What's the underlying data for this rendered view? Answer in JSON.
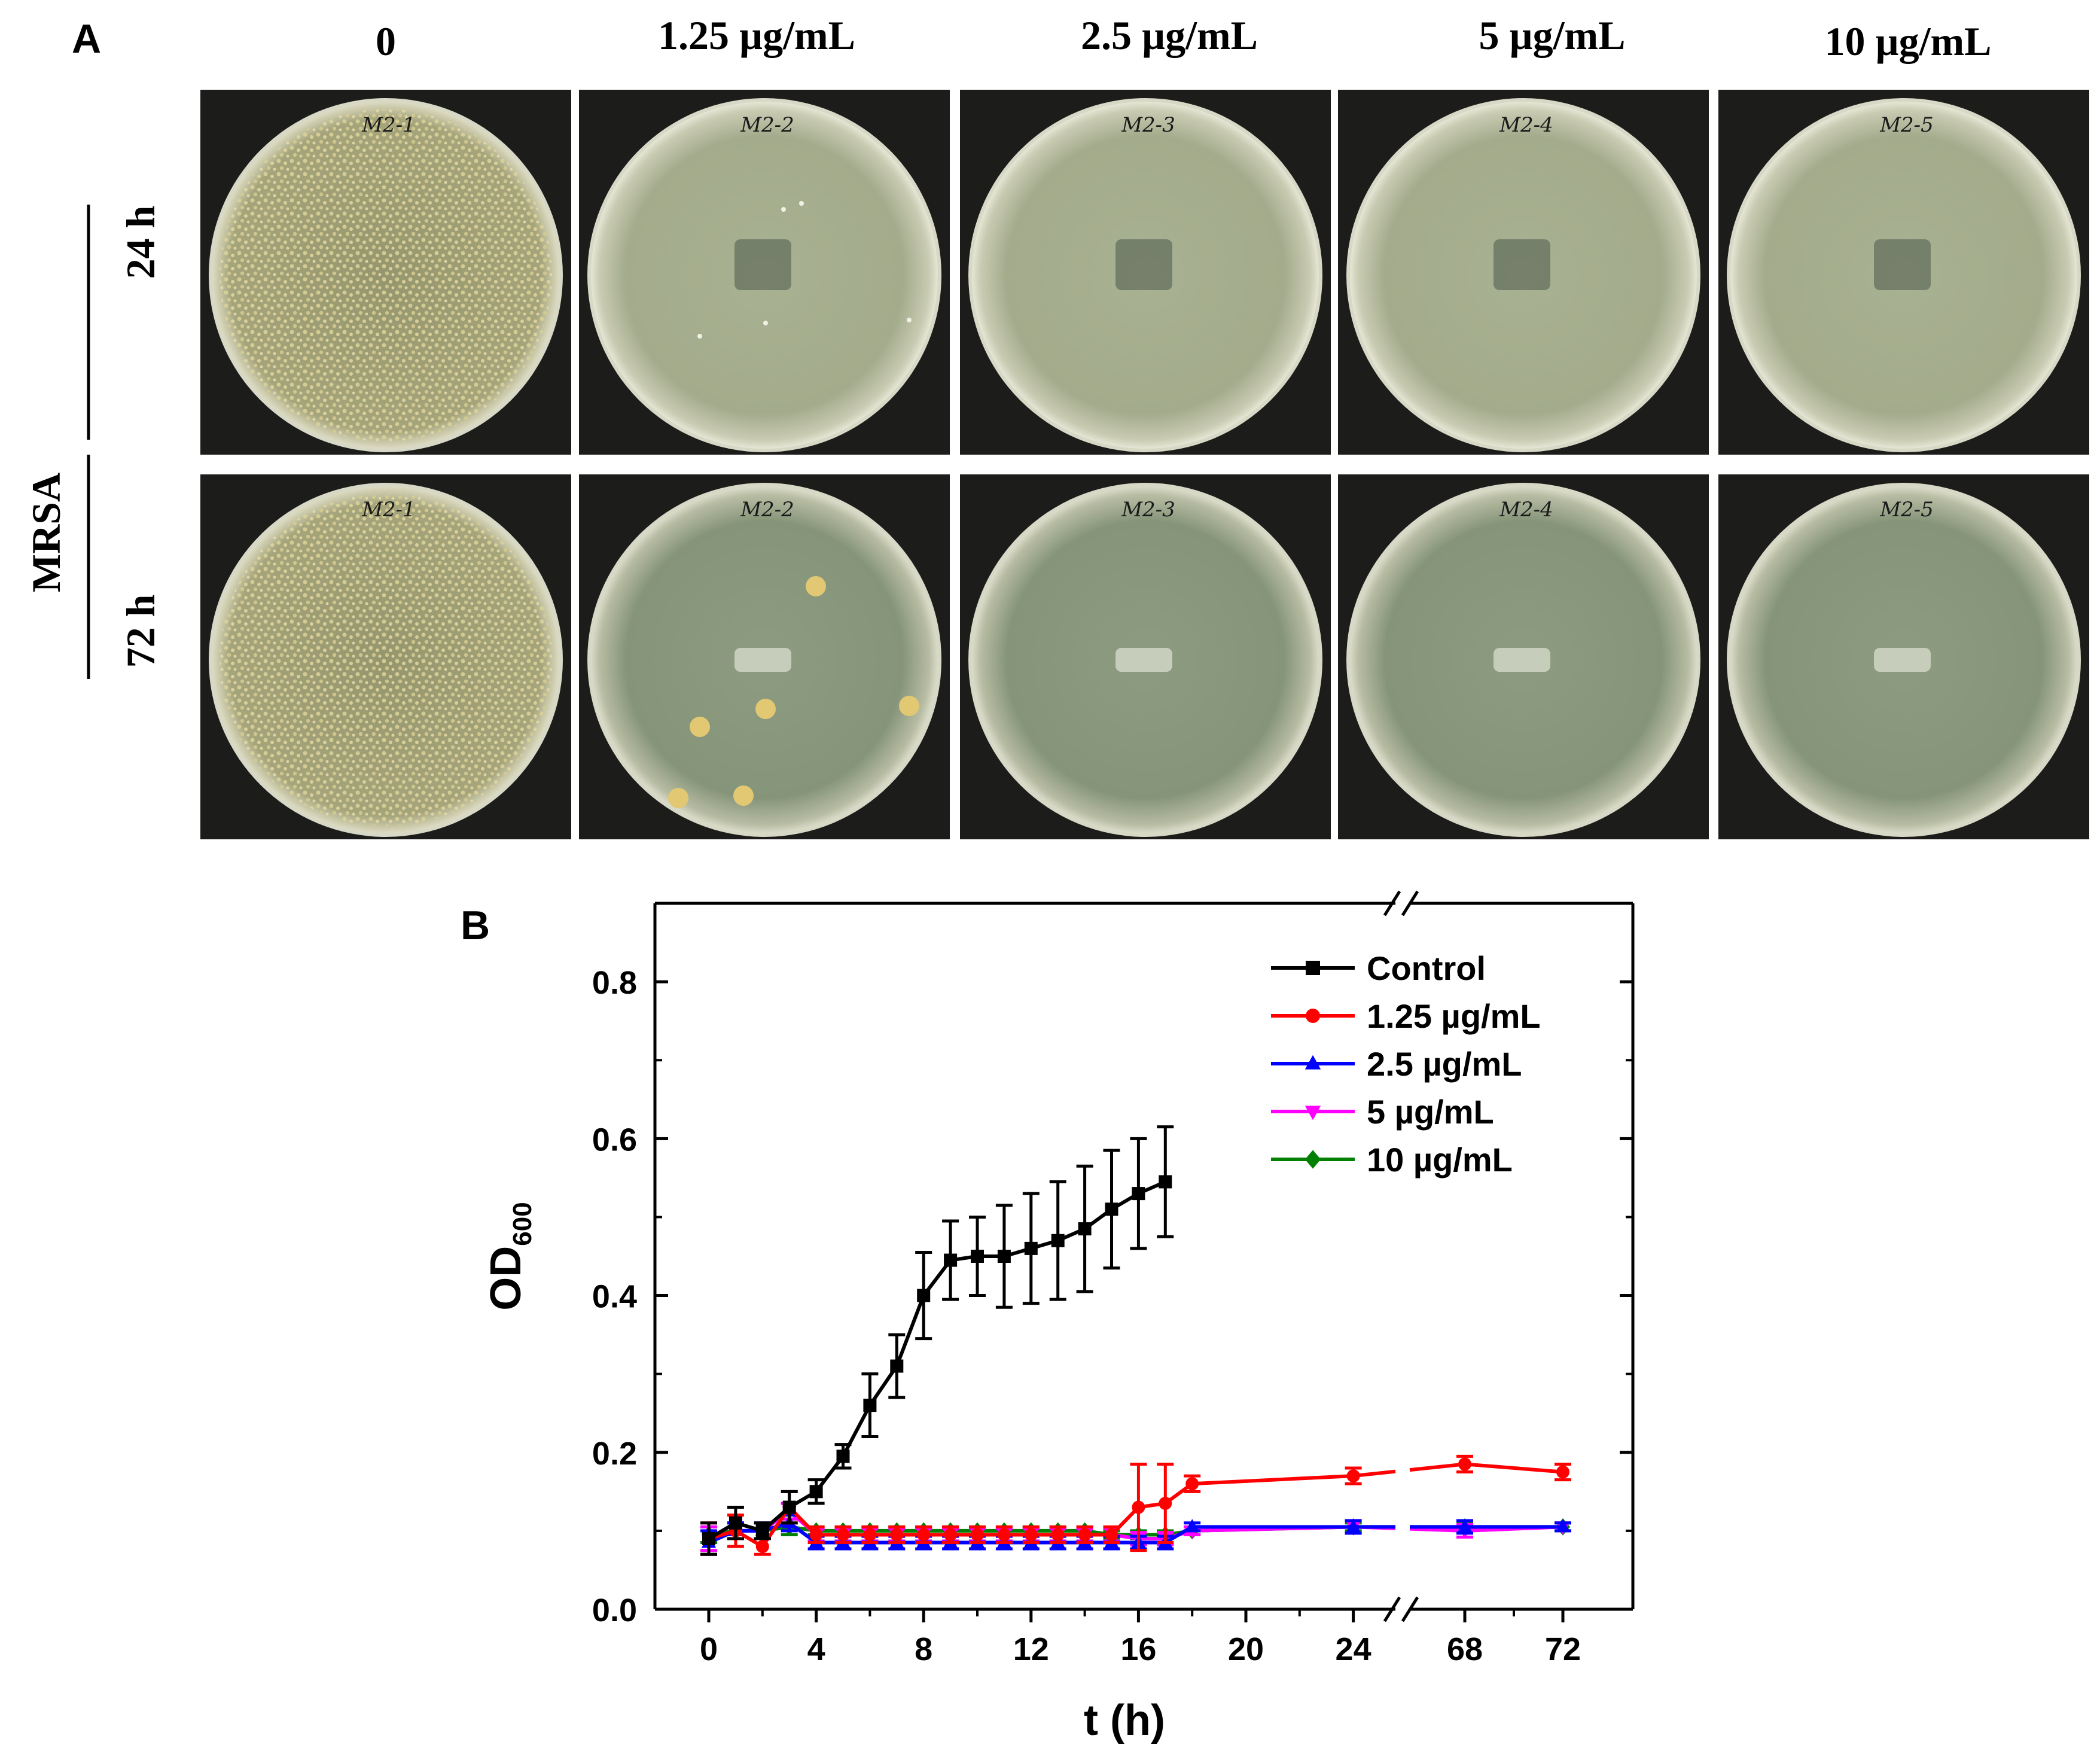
{
  "panel_a": {
    "label": "A",
    "column_headers": [
      "0",
      "1.25 µg/mL",
      "2.5 µg/mL",
      "5 µg/mL",
      "10 µg/mL"
    ],
    "row_headers": [
      "24 h",
      "72 h"
    ],
    "group_label": "MRSA",
    "plate_labels": [
      [
        "M2-1",
        "M2-2",
        "M2-3",
        "M2-4",
        "M2-5"
      ],
      [
        "M2-1",
        "M2-2",
        "M2-3",
        "M2-4",
        "M2-5"
      ]
    ],
    "colors": {
      "photo_background": "#1c1c1a",
      "agar": "#b9bda0",
      "agar_dark": "#7f8d72",
      "colony": "#e3c873"
    }
  },
  "panel_b": {
    "label": "B",
    "xlabel": "t (h)",
    "ylabel": "OD",
    "ylabel_sub": "600"
  },
  "chart_data": {
    "type": "line",
    "title": "",
    "xlabel": "t (h)",
    "ylabel": "OD600",
    "ylim": [
      0,
      0.9
    ],
    "y_ticks": [
      0.0,
      0.2,
      0.4,
      0.6,
      0.8
    ],
    "y_tick_labels": [
      "0.0",
      "0.2",
      "0.4",
      "0.6",
      "0.8"
    ],
    "x_ticks": [
      0,
      4,
      8,
      12,
      16,
      20,
      24,
      68,
      72
    ],
    "x_tick_labels": [
      "0",
      "4",
      "8",
      "12",
      "16",
      "20",
      "24",
      "68",
      "72"
    ],
    "x_axis_break": "between 24 and 68",
    "legend_position": "top-right",
    "grid": false,
    "series": [
      {
        "name": "Control",
        "color": "#000000",
        "marker": "square",
        "x": [
          0,
          1,
          2,
          3,
          4,
          5,
          6,
          7,
          8,
          9,
          10,
          11,
          12,
          13,
          14,
          15,
          16,
          17
        ],
        "y": [
          0.09,
          0.11,
          0.1,
          0.13,
          0.15,
          0.195,
          0.26,
          0.31,
          0.4,
          0.445,
          0.45,
          0.45,
          0.46,
          0.47,
          0.485,
          0.51,
          0.53,
          0.545
        ],
        "err": [
          0.02,
          0.02,
          0.01,
          0.02,
          0.015,
          0.015,
          0.04,
          0.04,
          0.055,
          0.05,
          0.05,
          0.065,
          0.07,
          0.075,
          0.08,
          0.075,
          0.07,
          0.07
        ]
      },
      {
        "name": "1.25 µg/mL",
        "color": "#ff0000",
        "marker": "circle",
        "x": [
          0,
          1,
          2,
          3,
          4,
          5,
          6,
          7,
          8,
          9,
          10,
          11,
          12,
          13,
          14,
          15,
          16,
          17,
          18,
          24,
          68,
          72
        ],
        "y": [
          0.09,
          0.1,
          0.08,
          0.13,
          0.095,
          0.095,
          0.095,
          0.095,
          0.095,
          0.095,
          0.095,
          0.095,
          0.095,
          0.095,
          0.095,
          0.095,
          0.13,
          0.135,
          0.16,
          0.17,
          0.185,
          0.175
        ],
        "err": [
          0.02,
          0.02,
          0.01,
          0.02,
          0.01,
          0.01,
          0.01,
          0.01,
          0.01,
          0.01,
          0.01,
          0.01,
          0.01,
          0.01,
          0.01,
          0.01,
          0.055,
          0.05,
          0.01,
          0.01,
          0.01,
          0.01
        ]
      },
      {
        "name": "2.5 µg/mL",
        "color": "#0000ff",
        "marker": "triangle-up",
        "x": [
          0,
          1,
          2,
          3,
          4,
          5,
          6,
          7,
          8,
          9,
          10,
          11,
          12,
          13,
          14,
          15,
          16,
          17,
          18,
          24,
          68,
          72
        ],
        "y": [
          0.085,
          0.1,
          0.1,
          0.11,
          0.085,
          0.085,
          0.085,
          0.085,
          0.085,
          0.085,
          0.085,
          0.085,
          0.085,
          0.085,
          0.085,
          0.085,
          0.085,
          0.085,
          0.105,
          0.105,
          0.105,
          0.105
        ],
        "err": [
          0.015,
          0.01,
          0.01,
          0.01,
          0.008,
          0.008,
          0.008,
          0.008,
          0.008,
          0.008,
          0.008,
          0.008,
          0.008,
          0.008,
          0.008,
          0.008,
          0.008,
          0.008,
          0.005,
          0.008,
          0.008,
          0.005
        ]
      },
      {
        "name": "5 µg/mL",
        "color": "#ff00ff",
        "marker": "triangle-down",
        "x": [
          0,
          1,
          2,
          3,
          4,
          5,
          6,
          7,
          8,
          9,
          10,
          11,
          12,
          13,
          14,
          15,
          16,
          17,
          18,
          24,
          68,
          72
        ],
        "y": [
          0.09,
          0.1,
          0.1,
          0.125,
          0.095,
          0.095,
          0.095,
          0.095,
          0.095,
          0.095,
          0.095,
          0.095,
          0.095,
          0.095,
          0.095,
          0.095,
          0.09,
          0.09,
          0.1,
          0.105,
          0.1,
          0.105
        ],
        "err": [
          0.015,
          0.01,
          0.01,
          0.01,
          0.008,
          0.008,
          0.008,
          0.008,
          0.008,
          0.008,
          0.008,
          0.008,
          0.008,
          0.008,
          0.008,
          0.008,
          0.008,
          0.008,
          0.005,
          0.008,
          0.008,
          0.005
        ]
      },
      {
        "name": "10 µg/mL",
        "color": "#008000",
        "marker": "diamond",
        "x": [
          0,
          1,
          2,
          3,
          4,
          5,
          6,
          7,
          8,
          9,
          10,
          11,
          12,
          13,
          14,
          15,
          16,
          17,
          18,
          24,
          68,
          72
        ],
        "y": [
          0.095,
          0.1,
          0.1,
          0.105,
          0.1,
          0.1,
          0.1,
          0.1,
          0.1,
          0.1,
          0.1,
          0.1,
          0.1,
          0.1,
          0.1,
          0.095,
          0.095,
          0.095,
          0.1,
          0.105,
          0.105,
          0.105
        ],
        "err": [
          0.01,
          0.01,
          0.01,
          0.01,
          0.005,
          0.005,
          0.005,
          0.005,
          0.005,
          0.005,
          0.005,
          0.005,
          0.005,
          0.005,
          0.005,
          0.005,
          0.005,
          0.005,
          0.005,
          0.005,
          0.005,
          0.005
        ]
      }
    ]
  }
}
